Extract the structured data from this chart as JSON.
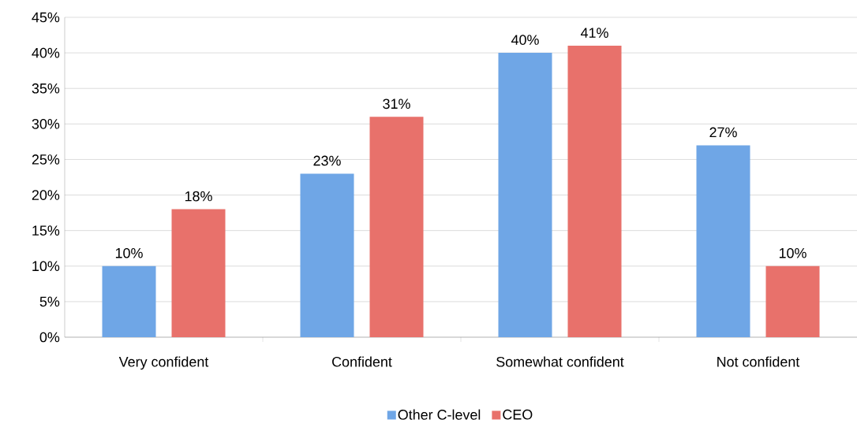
{
  "chart_data": {
    "type": "bar",
    "categories": [
      "Very confident",
      "Confident",
      "Somewhat confident",
      "Not confident"
    ],
    "series": [
      {
        "name": "Other C-level",
        "color": "#6fa6e6",
        "values": [
          10,
          23,
          40,
          27
        ],
        "value_labels": [
          "10%",
          "23%",
          "40%",
          "27%"
        ]
      },
      {
        "name": "CEO",
        "color": "#e8716b",
        "values": [
          18,
          31,
          41,
          10
        ],
        "value_labels": [
          "18%",
          "31%",
          "41%",
          "10%"
        ]
      }
    ],
    "ylim": [
      0,
      45
    ],
    "yticks": [
      {
        "value": 0,
        "label": "0%"
      },
      {
        "value": 5,
        "label": "5%"
      },
      {
        "value": 10,
        "label": "10%"
      },
      {
        "value": 15,
        "label": "15%"
      },
      {
        "value": 20,
        "label": "20%"
      },
      {
        "value": 25,
        "label": "25%"
      },
      {
        "value": 30,
        "label": "30%"
      },
      {
        "value": 35,
        "label": "35%"
      },
      {
        "value": 40,
        "label": "40%"
      },
      {
        "value": 45,
        "label": "45%"
      }
    ],
    "grid": "y",
    "legend": "bottom"
  }
}
